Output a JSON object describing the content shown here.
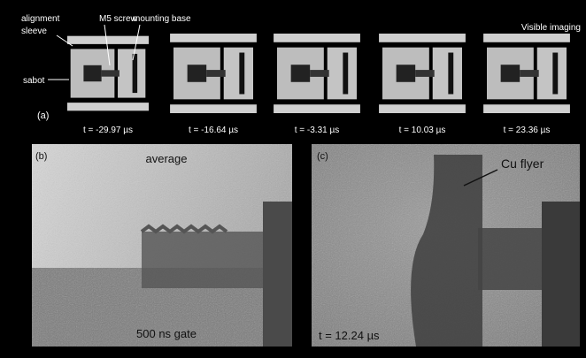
{
  "figure": {
    "panel_a": {
      "label": "(a)",
      "mode": "Visible imaging",
      "annotations": {
        "alignment_sleeve": [
          "alignment",
          "sleeve"
        ],
        "m5_screw": "M5 screw",
        "mounting_base": "mounting base",
        "sabot": "sabot"
      },
      "times": [
        "t = -29.97 µs",
        "t = -16.64 µs",
        "t = -3.31 µs",
        "t = 10.03 µs",
        "t = 23.36 µs"
      ]
    },
    "panel_b": {
      "label": "(b)",
      "top_text": "average",
      "bottom_text": "500 ns gate"
    },
    "panel_c": {
      "label": "(c)",
      "annotation": "Cu flyer",
      "time": "t = 12.24 µs"
    }
  }
}
